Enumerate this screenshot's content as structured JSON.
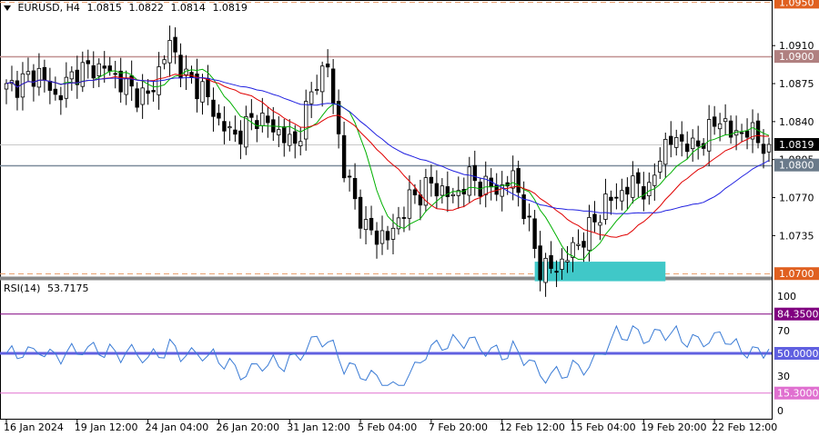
{
  "symbol": "EURUSD",
  "timeframe": "H4",
  "ohlc": {
    "open": "1.0815",
    "high": "1.0822",
    "low": "1.0814",
    "close": "1.0819"
  },
  "rsi_label": "RSI(14)",
  "rsi_value": "53.7175",
  "colors": {
    "candle": "#000000",
    "ma_fast": "#00b000",
    "ma_mid": "#e00000",
    "ma_slow": "#2020e0",
    "rsi_line": "#3a7bd5",
    "resistance_line": "#c09090",
    "support_line": "#7a8a9a",
    "dashed_level": "#e8a070",
    "highlight_box": "#40c8c8",
    "level_84": "#800080",
    "level_50": "#6060e0",
    "level_15": "#e070d0"
  },
  "chart_data": {
    "type": "candlestick",
    "price_axis": {
      "ticks": [
        "1.0910",
        "1.0875",
        "1.0840",
        "1.0805",
        "1.0770",
        "1.0735"
      ],
      "ylim": [
        1.0696,
        1.0952
      ]
    },
    "price_levels": [
      {
        "label": "1.0950",
        "value": 1.095,
        "style": "dashed"
      },
      {
        "label": "1.0900",
        "value": 1.09,
        "style": "solid"
      },
      {
        "label": "1.0819",
        "value": 1.0819,
        "style": "current"
      },
      {
        "label": "1.0800",
        "value": 1.08,
        "style": "solid"
      },
      {
        "label": "1.0700",
        "value": 1.07,
        "style": "dashed"
      }
    ],
    "highlight_zone": {
      "x_from": 97,
      "x_to": 121,
      "low": 1.0693,
      "high": 1.0711
    },
    "rsi_axis": {
      "ticks": [
        "100",
        "70",
        "30",
        "0"
      ],
      "ylim": [
        0,
        100
      ]
    },
    "rsi_levels": [
      {
        "label": "84.3500",
        "value": 84.35
      },
      {
        "label": "50.0000",
        "value": 50.0
      },
      {
        "label": "15.3000",
        "value": 15.3
      }
    ],
    "x_labels": [
      "16 Jan 2024",
      "19 Jan 12:00",
      "24 Jan 04:00",
      "26 Jan 20:00",
      "31 Jan 12:00",
      "5 Feb 04:00",
      "7 Feb 20:00",
      "12 Feb 12:00",
      "15 Feb 04:00",
      "19 Feb 20:00",
      "22 Feb 12:00"
    ],
    "x_label_index": [
      0,
      13,
      26,
      39,
      52,
      65,
      78,
      91,
      104,
      117,
      130
    ],
    "anchors": [
      {
        "i": 0,
        "p": 1.087
      },
      {
        "i": 6,
        "p": 1.0885
      },
      {
        "i": 9,
        "p": 1.0862
      },
      {
        "i": 13,
        "p": 1.0887
      },
      {
        "i": 18,
        "p": 1.089
      },
      {
        "i": 23,
        "p": 1.0868
      },
      {
        "i": 26,
        "p": 1.0862
      },
      {
        "i": 30,
        "p": 1.0912
      },
      {
        "i": 33,
        "p": 1.088
      },
      {
        "i": 36,
        "p": 1.087
      },
      {
        "i": 39,
        "p": 1.084
      },
      {
        "i": 42,
        "p": 1.0826
      },
      {
        "i": 46,
        "p": 1.0845
      },
      {
        "i": 50,
        "p": 1.083
      },
      {
        "i": 53,
        "p": 1.0818
      },
      {
        "i": 57,
        "p": 1.088
      },
      {
        "i": 59,
        "p": 1.089
      },
      {
        "i": 62,
        "p": 1.0795
      },
      {
        "i": 66,
        "p": 1.074
      },
      {
        "i": 70,
        "p": 1.0732
      },
      {
        "i": 74,
        "p": 1.0768
      },
      {
        "i": 78,
        "p": 1.0782
      },
      {
        "i": 82,
        "p": 1.077
      },
      {
        "i": 85,
        "p": 1.0788
      },
      {
        "i": 88,
        "p": 1.078
      },
      {
        "i": 91,
        "p": 1.0778
      },
      {
        "i": 93,
        "p": 1.079
      },
      {
        "i": 95,
        "p": 1.076
      },
      {
        "i": 98,
        "p": 1.0705
      },
      {
        "i": 101,
        "p": 1.0705
      },
      {
        "i": 104,
        "p": 1.0722
      },
      {
        "i": 107,
        "p": 1.074
      },
      {
        "i": 110,
        "p": 1.0765
      },
      {
        "i": 113,
        "p": 1.0775
      },
      {
        "i": 116,
        "p": 1.0785
      },
      {
        "i": 118,
        "p": 1.0772
      },
      {
        "i": 120,
        "p": 1.0812
      },
      {
        "i": 123,
        "p": 1.0825
      },
      {
        "i": 126,
        "p": 1.0815
      },
      {
        "i": 129,
        "p": 1.083
      },
      {
        "i": 131,
        "p": 1.0845
      },
      {
        "i": 133,
        "p": 1.0828
      },
      {
        "i": 136,
        "p": 1.0832
      },
      {
        "i": 139,
        "p": 1.082
      },
      {
        "i": 140,
        "p": 1.0819
      }
    ]
  }
}
